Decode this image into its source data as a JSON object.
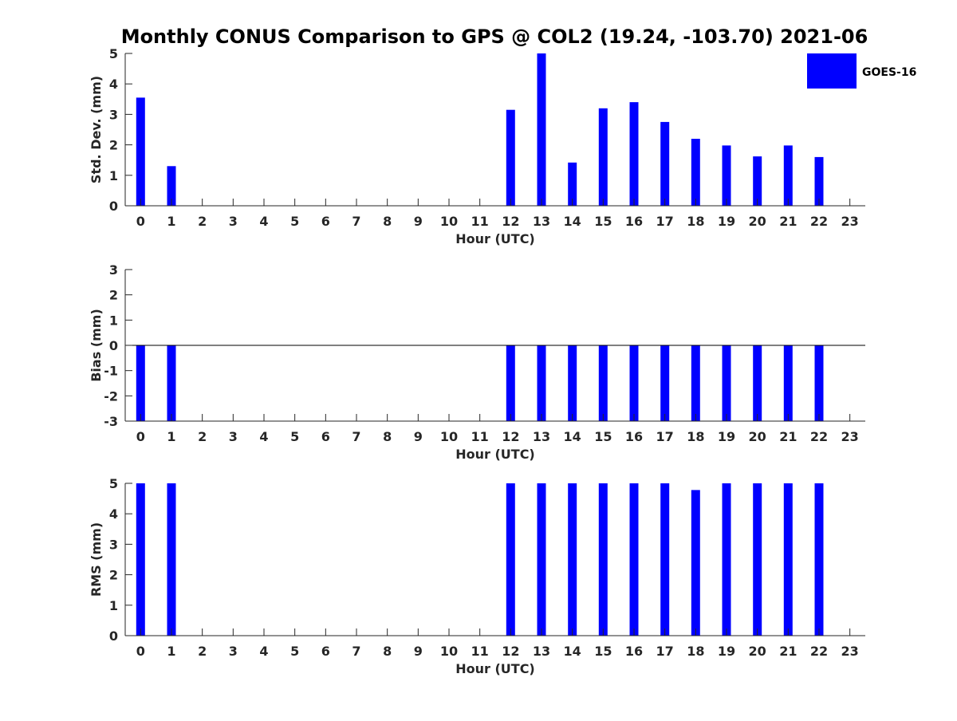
{
  "chart_data": {
    "type": "bar",
    "title": "Monthly CONUS Comparison to GPS @ COL2 (19.24, -103.70) 2021-06",
    "categories": [
      "0",
      "1",
      "2",
      "3",
      "4",
      "5",
      "6",
      "7",
      "8",
      "9",
      "10",
      "11",
      "12",
      "13",
      "14",
      "15",
      "16",
      "17",
      "18",
      "19",
      "20",
      "21",
      "22",
      "23"
    ],
    "xlabel": "Hour (UTC)",
    "legend": {
      "placement": "top-right",
      "entries": [
        "GOES-16"
      ]
    },
    "bar_color": "#0000ff",
    "grid": false,
    "panels": [
      {
        "ylabel": "Std. Dev. (mm)",
        "ylim": [
          0,
          5
        ],
        "yticks": [
          "0",
          "1",
          "2",
          "3",
          "4",
          "5"
        ],
        "series": [
          {
            "name": "GOES-16",
            "values": [
              3.55,
              1.3,
              null,
              null,
              null,
              null,
              null,
              null,
              null,
              null,
              null,
              null,
              3.15,
              5.0,
              1.42,
              3.2,
              3.4,
              2.75,
              2.2,
              1.98,
              1.62,
              1.98,
              1.6,
              null
            ]
          }
        ]
      },
      {
        "ylabel": "Bias (mm)",
        "ylim": [
          -3,
          3
        ],
        "yticks": [
          "-3",
          "-2",
          "-1",
          "0",
          "1",
          "2",
          "3"
        ],
        "zero_line": true,
        "series": [
          {
            "name": "GOES-16",
            "values": [
              -3,
              -3,
              null,
              null,
              null,
              null,
              null,
              null,
              null,
              null,
              null,
              null,
              -3,
              -3,
              -3,
              -3,
              -3,
              -3,
              -3,
              -3,
              -3,
              -3,
              -3,
              null
            ]
          }
        ]
      },
      {
        "ylabel": "RMS (mm)",
        "ylim": [
          0,
          5
        ],
        "yticks": [
          "0",
          "1",
          "2",
          "3",
          "4",
          "5"
        ],
        "series": [
          {
            "name": "GOES-16",
            "values": [
              5,
              5,
              null,
              null,
              null,
              null,
              null,
              null,
              null,
              null,
              null,
              null,
              5,
              5,
              5,
              5,
              5,
              5,
              4.78,
              5,
              5,
              5,
              5,
              null
            ]
          }
        ]
      }
    ]
  }
}
